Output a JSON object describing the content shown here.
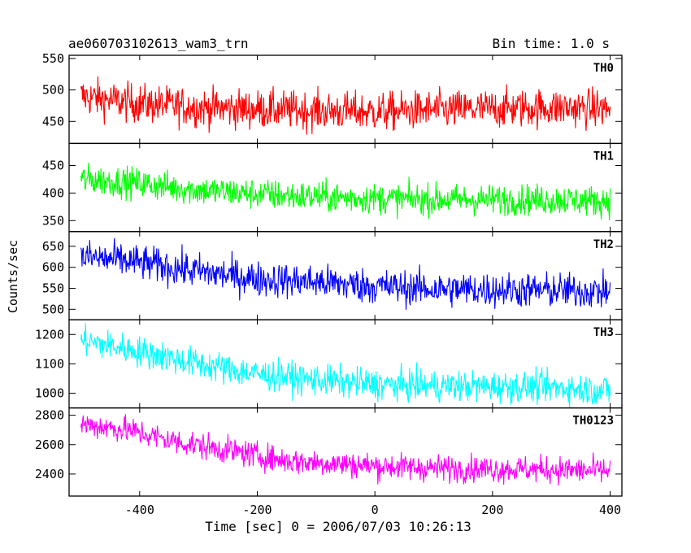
{
  "header": {
    "title": "ae060703102613_wam3_trn",
    "bin_time": "Bin time: 1.0 s"
  },
  "axes": {
    "ylabel": "Counts/sec",
    "xlabel": "Time [sec] 0 = 2006/07/03 10:26:13"
  },
  "chart_data": {
    "type": "line",
    "xlim": [
      -520,
      420
    ],
    "x_ticks": [
      -400,
      -200,
      0,
      200,
      400
    ],
    "x_range": [
      -500,
      400
    ],
    "bin": 1.0,
    "panels": [
      {
        "name": "TH0",
        "color": "#ff0000",
        "ylim": [
          415,
          555
        ],
        "ticks": [
          450,
          500,
          550
        ],
        "trend": [
          [
            -500,
            490
          ],
          [
            -420,
            480
          ],
          [
            -300,
            472
          ],
          [
            -150,
            468
          ],
          [
            0,
            465
          ],
          [
            100,
            468
          ],
          [
            300,
            472
          ],
          [
            400,
            470
          ]
        ],
        "noise": 22
      },
      {
        "name": "TH1",
        "color": "#00ff00",
        "ylim": [
          330,
          490
        ],
        "ticks": [
          350,
          400,
          450
        ],
        "trend": [
          [
            -500,
            425
          ],
          [
            -420,
            420
          ],
          [
            -300,
            405
          ],
          [
            -150,
            395
          ],
          [
            0,
            390
          ],
          [
            100,
            388
          ],
          [
            300,
            388
          ],
          [
            400,
            385
          ]
        ],
        "noise": 20
      },
      {
        "name": "TH2",
        "color": "#0000ff",
        "ylim": [
          475,
          685
        ],
        "ticks": [
          500,
          550,
          600,
          650
        ],
        "trend": [
          [
            -500,
            625
          ],
          [
            -420,
            615
          ],
          [
            -300,
            590
          ],
          [
            -200,
            572
          ],
          [
            -100,
            565
          ],
          [
            0,
            555
          ],
          [
            100,
            548
          ],
          [
            300,
            545
          ],
          [
            400,
            542
          ]
        ],
        "noise": 30
      },
      {
        "name": "TH3",
        "color": "#00ffff",
        "ylim": [
          950,
          1250
        ],
        "ticks": [
          1000,
          1100,
          1200
        ],
        "trend": [
          [
            -500,
            1180
          ],
          [
            -420,
            1150
          ],
          [
            -300,
            1100
          ],
          [
            -200,
            1065
          ],
          [
            -100,
            1045
          ],
          [
            0,
            1030
          ],
          [
            100,
            1025
          ],
          [
            300,
            1020
          ],
          [
            400,
            1010
          ]
        ],
        "noise": 38
      },
      {
        "name": "TH0123",
        "color": "#ff00ff",
        "ylim": [
          2250,
          2850
        ],
        "ticks": [
          2400,
          2600,
          2800
        ],
        "trend": [
          [
            -500,
            2740
          ],
          [
            -420,
            2700
          ],
          [
            -350,
            2630
          ],
          [
            -250,
            2560
          ],
          [
            -150,
            2490
          ],
          [
            0,
            2455
          ],
          [
            100,
            2440
          ],
          [
            300,
            2430
          ],
          [
            400,
            2420
          ]
        ],
        "noise": 65
      }
    ]
  }
}
